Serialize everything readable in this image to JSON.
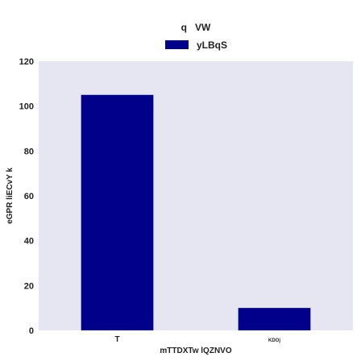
{
  "chart_data": {
    "type": "bar",
    "legend_title": "q   VW",
    "legend_placement": "top-center",
    "categories": [
      "T",
      "KDOj"
    ],
    "series": [
      {
        "name": "yLBqS",
        "values": [
          105,
          10
        ],
        "color": "#00008b"
      }
    ],
    "xlabel": "mTTDXTw lQZNVO",
    "ylabel": "eGPR liECvY k",
    "ylim": [
      0,
      120
    ],
    "yticks": [
      0,
      20,
      40,
      60,
      80,
      100,
      120
    ],
    "grid": false,
    "plot_background": "#e6e6f2"
  }
}
